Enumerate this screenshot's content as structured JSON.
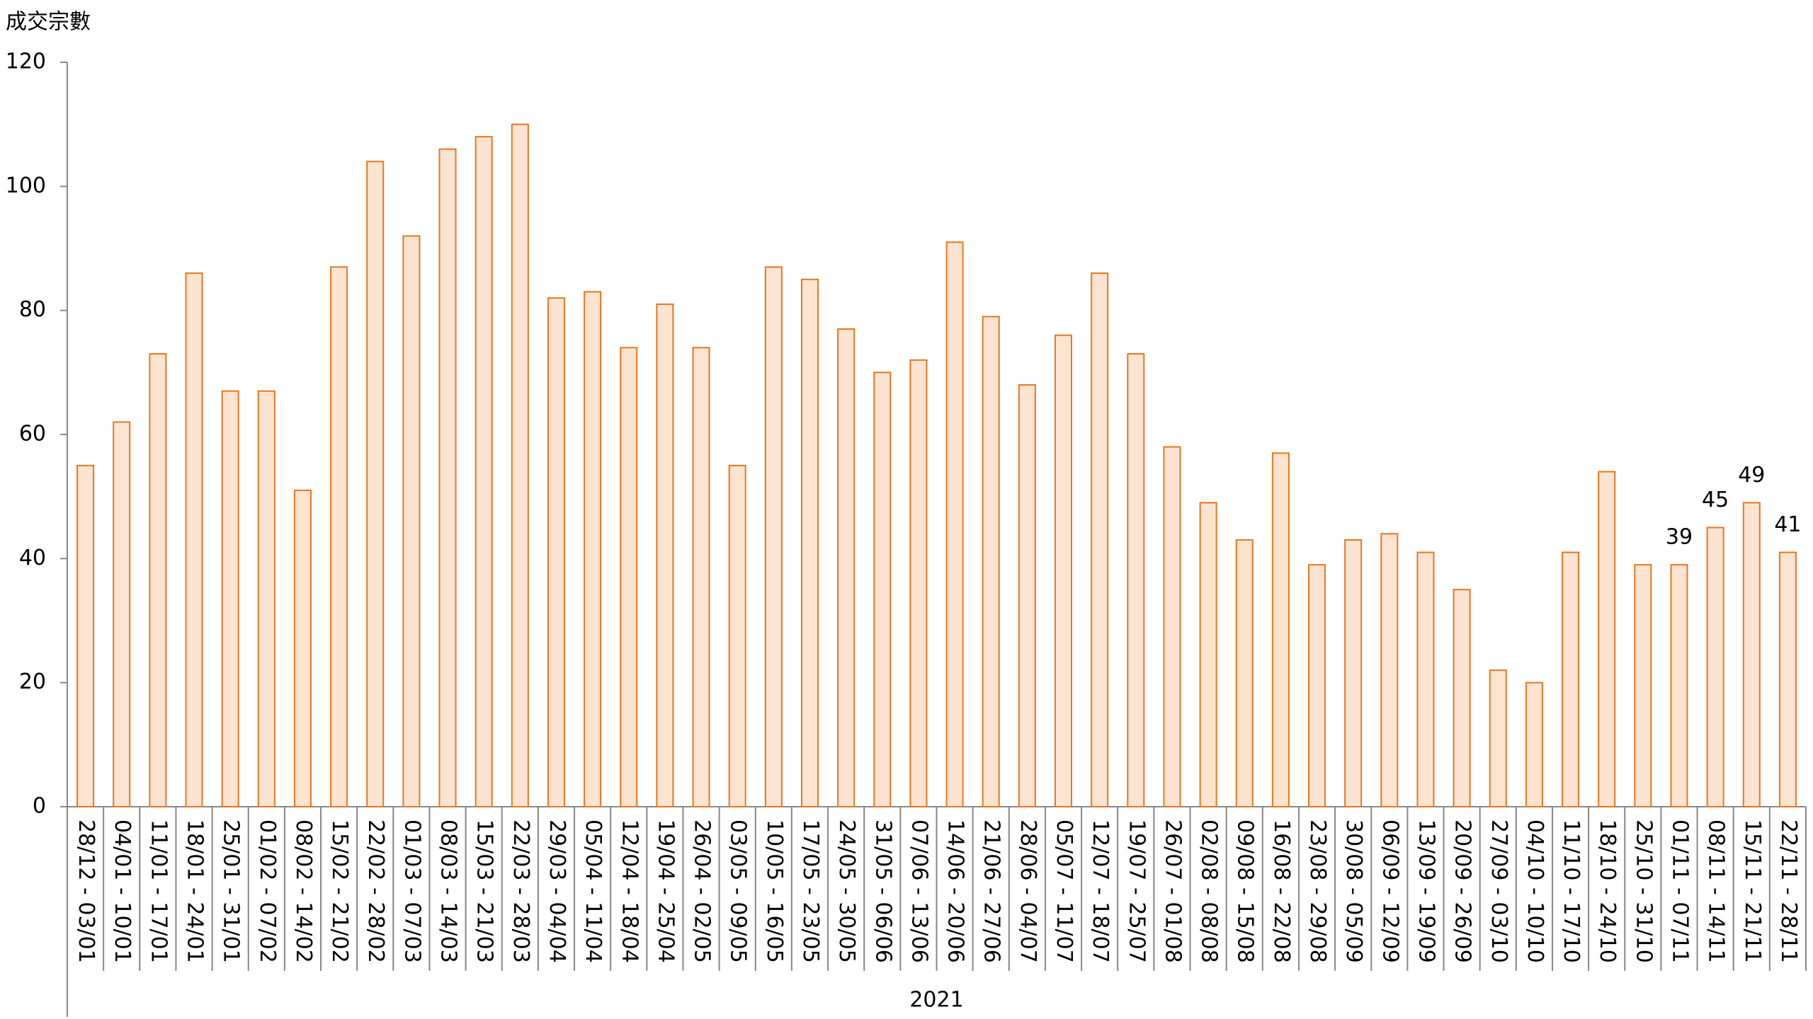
{
  "chart_data": {
    "type": "bar",
    "y_label": "成交宗數",
    "group_label": "2021",
    "categories": [
      "28/12 - 03/01",
      "04/01 - 10/01",
      "11/01 - 17/01",
      "18/01 - 24/01",
      "25/01 - 31/01",
      "01/02 - 07/02",
      "08/02 - 14/02",
      "15/02 - 21/02",
      "22/02 - 28/02",
      "01/03 - 07/03",
      "08/03 - 14/03",
      "15/03 - 21/03",
      "22/03 - 28/03",
      "29/03 - 04/04",
      "05/04 - 11/04",
      "12/04 - 18/04",
      "19/04 - 25/04",
      "26/04 - 02/05",
      "03/05 - 09/05",
      "10/05 - 16/05",
      "17/05 - 23/05",
      "24/05 - 30/05",
      "31/05 - 06/06",
      "07/06 - 13/06",
      "14/06 - 20/06",
      "21/06 - 27/06",
      "28/06 - 04/07",
      "05/07 - 11/07",
      "12/07 - 18/07",
      "19/07 - 25/07",
      "26/07 - 01/08",
      "02/08 - 08/08",
      "09/08 - 15/08",
      "16/08 - 22/08",
      "23/08 - 29/08",
      "30/08 - 05/09",
      "06/09 - 12/09",
      "13/09 - 19/09",
      "20/09 - 26/09",
      "27/09 - 03/10",
      "04/10 - 10/10",
      "11/10 - 17/10",
      "18/10 - 24/10",
      "25/10 - 31/10",
      "01/11 - 07/11",
      "08/11 - 14/11",
      "15/11 - 21/11",
      "22/11 - 28/11"
    ],
    "values": [
      55,
      62,
      73,
      86,
      67,
      67,
      51,
      87,
      104,
      92,
      106,
      108,
      110,
      82,
      83,
      74,
      81,
      74,
      55,
      87,
      85,
      77,
      70,
      72,
      91,
      79,
      68,
      76,
      86,
      73,
      58,
      49,
      43,
      57,
      39,
      43,
      44,
      41,
      35,
      22,
      20,
      41,
      54,
      39,
      39,
      45,
      49,
      41
    ],
    "value_labels": [
      null,
      null,
      null,
      null,
      null,
      null,
      null,
      null,
      null,
      null,
      null,
      null,
      null,
      null,
      null,
      null,
      null,
      null,
      null,
      null,
      null,
      null,
      null,
      null,
      null,
      null,
      null,
      null,
      null,
      null,
      null,
      null,
      null,
      null,
      null,
      null,
      null,
      null,
      null,
      null,
      null,
      null,
      null,
      null,
      39,
      45,
      49,
      41
    ],
    "color": "#fce4d0",
    "edge_color": "#e8761e",
    "ylim": [
      0,
      120
    ],
    "yticks": [
      0,
      20,
      40,
      60,
      80,
      100,
      120
    ],
    "grid": false
  }
}
